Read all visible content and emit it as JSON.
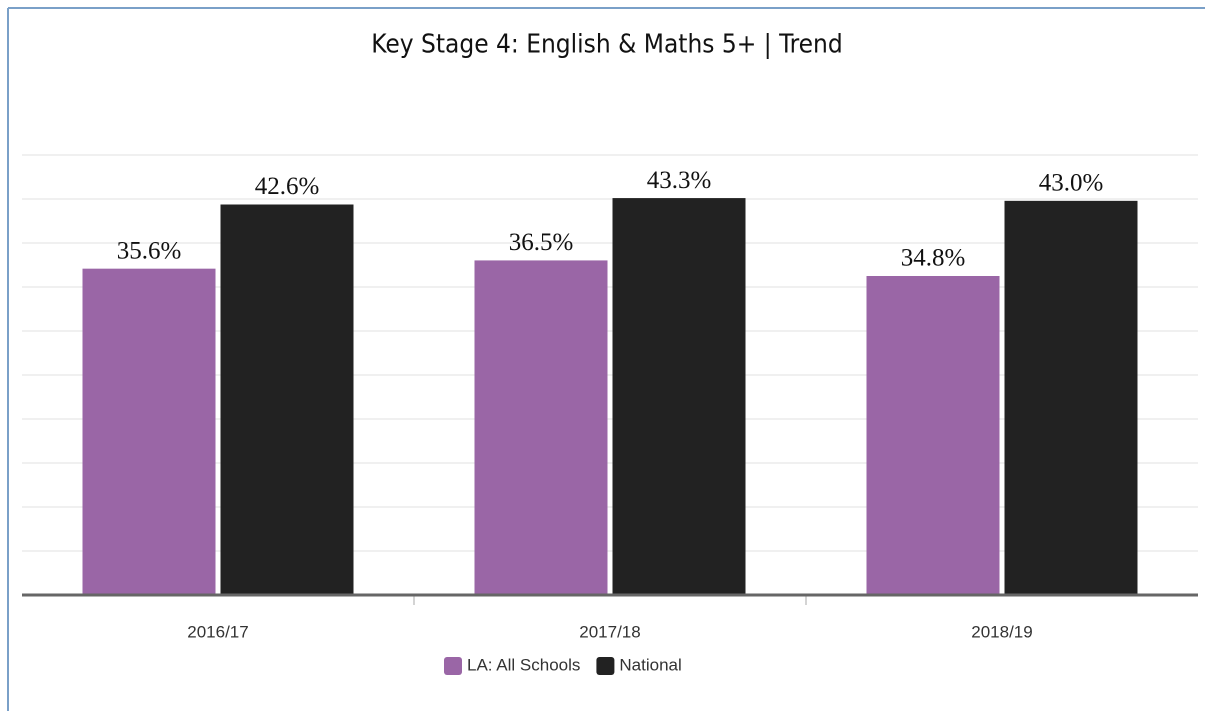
{
  "chart_data": {
    "type": "bar",
    "title": "Key Stage 4: English & Maths 5+ | Trend",
    "categories": [
      "2016/17",
      "2017/18",
      "2018/19"
    ],
    "series": [
      {
        "name": "LA: All Schools",
        "color": "#9a66a6",
        "values": [
          35.6,
          36.5,
          34.8
        ],
        "value_labels": [
          "35.6%",
          "36.5%",
          "34.8%"
        ]
      },
      {
        "name": "National",
        "color": "#222222",
        "values": [
          42.6,
          43.3,
          43.0
        ],
        "value_labels": [
          "42.6%",
          "43.3%",
          "43.0%"
        ]
      }
    ],
    "ylim": [
      0,
      48
    ],
    "yticks": [
      0,
      4.8,
      9.6,
      14.4,
      19.2,
      24,
      28.8,
      33.6,
      38.4,
      43.2,
      48
    ],
    "grid": true,
    "legend": "bottom"
  }
}
